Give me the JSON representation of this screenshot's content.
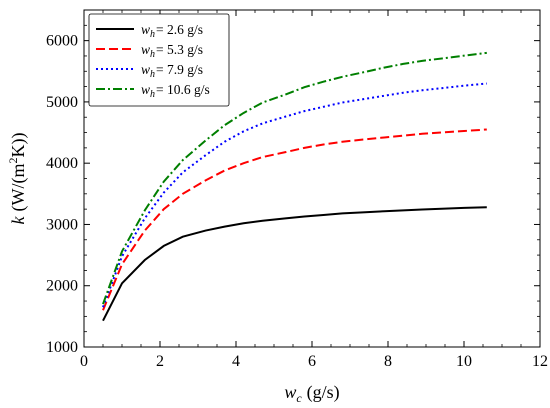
{
  "chart_data": {
    "type": "line",
    "xlabel": {
      "var": "w",
      "sub": "c",
      "unit": "(g/s)"
    },
    "ylabel": {
      "var": "k",
      "unit_pre": "(W/(m",
      "sup": "2",
      "unit_post": "K))"
    },
    "xlim": [
      0,
      12
    ],
    "ylim": [
      1000,
      6500
    ],
    "xticks": [
      0,
      2,
      4,
      6,
      8,
      10,
      12
    ],
    "yticks": [
      1000,
      2000,
      3000,
      4000,
      5000,
      6000
    ],
    "grid": false,
    "legend": "top-left",
    "x": [
      0.5,
      1.0,
      1.6,
      2.1,
      2.6,
      3.2,
      3.7,
      4.2,
      4.7,
      5.3,
      5.8,
      6.3,
      6.8,
      7.4,
      7.9,
      8.4,
      8.9,
      9.5,
      10.0,
      10.6
    ],
    "series": [
      {
        "name": {
          "var": "w",
          "sub": "h",
          "value": "= 2.6 g/s"
        },
        "color": "#000000",
        "dash": "solid",
        "values": [
          1430,
          2040,
          2420,
          2650,
          2800,
          2900,
          2965,
          3020,
          3060,
          3100,
          3130,
          3155,
          3180,
          3200,
          3215,
          3230,
          3245,
          3258,
          3270,
          3280
        ]
      },
      {
        "name": {
          "var": "w",
          "sub": "h",
          "value": "= 5.3 g/s"
        },
        "color": "#ff0000",
        "dash": "dashed",
        "values": [
          1600,
          2350,
          2900,
          3250,
          3500,
          3720,
          3880,
          4000,
          4100,
          4180,
          4250,
          4305,
          4350,
          4390,
          4420,
          4450,
          4480,
          4505,
          4525,
          4550
        ]
      },
      {
        "name": {
          "var": "w",
          "sub": "h",
          "value": "= 7.9 g/s"
        },
        "color": "#0000ff",
        "dash": "dotted",
        "values": [
          1650,
          2480,
          3100,
          3520,
          3850,
          4130,
          4350,
          4520,
          4650,
          4760,
          4850,
          4920,
          4990,
          5050,
          5100,
          5150,
          5190,
          5230,
          5265,
          5300
        ]
      },
      {
        "name": {
          "var": "w",
          "sub": "h",
          "value": "= 10.6 g/s"
        },
        "color": "#007f00",
        "dash": "dashdot",
        "values": [
          1700,
          2560,
          3230,
          3700,
          4050,
          4370,
          4620,
          4820,
          4990,
          5120,
          5240,
          5330,
          5410,
          5490,
          5560,
          5620,
          5670,
          5715,
          5755,
          5800
        ]
      }
    ]
  }
}
